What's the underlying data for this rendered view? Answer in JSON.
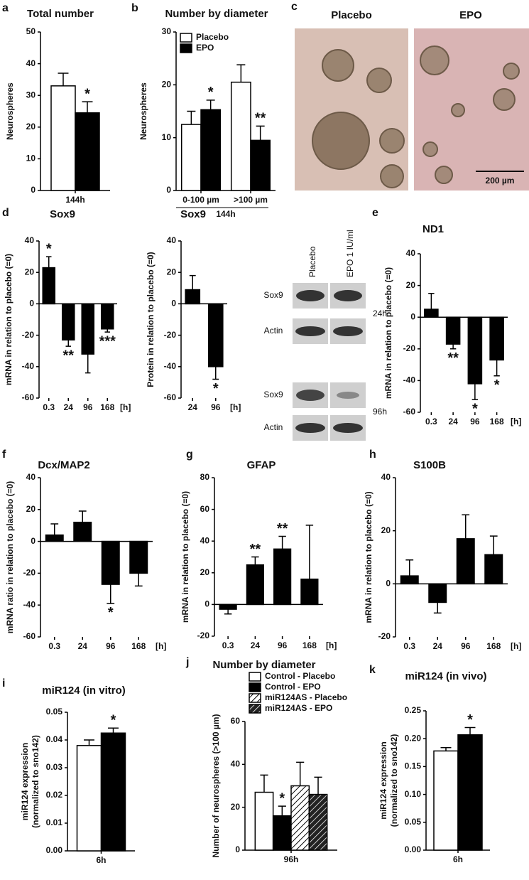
{
  "chart_data": [
    {
      "type": "bar",
      "panel": "a",
      "title": "Total number",
      "ylabel": "Neurospheres",
      "categories": [
        "144h"
      ],
      "ylim": [
        0,
        50
      ],
      "yticks": [
        0,
        10,
        20,
        30,
        40,
        50
      ],
      "series": [
        {
          "color": "#ffffff",
          "values": [
            33
          ],
          "errors": [
            4
          ],
          "stars": [
            null
          ]
        },
        {
          "color": "#000000",
          "values": [
            24.5
          ],
          "errors": [
            3.5
          ],
          "stars": [
            "*"
          ]
        }
      ]
    },
    {
      "type": "bar",
      "panel": "b",
      "title": "Number by diameter",
      "ylabel": "Neurospheres",
      "categories": [
        "0-100 µm",
        ">100 µm"
      ],
      "xlabel": "144h",
      "ylim": [
        0,
        30
      ],
      "yticks": [
        0,
        10,
        20,
        30
      ],
      "legend": "upper left",
      "series": [
        {
          "name": "Placebo",
          "color": "#ffffff",
          "values": [
            12.5,
            20.5
          ],
          "errors": [
            2.5,
            3.3
          ],
          "stars": [
            null,
            null
          ]
        },
        {
          "name": "EPO",
          "color": "#000000",
          "values": [
            15.3,
            9.5
          ],
          "errors": [
            1.8,
            2.7
          ],
          "stars": [
            "*",
            "**"
          ]
        }
      ]
    },
    {
      "type": "bar",
      "panel": "d",
      "title": "Sox9",
      "ylabel": "mRNA in relation to placebo (=0)",
      "categories": [
        "0.3",
        "24",
        "96",
        "168"
      ],
      "unit": "[h]",
      "ylim": [
        -60,
        40
      ],
      "yticks": [
        -60,
        -40,
        -20,
        0,
        20,
        40
      ],
      "series": [
        {
          "color": "#000000",
          "values": [
            23,
            -23,
            -32,
            -16
          ],
          "errors": [
            7,
            4,
            12,
            2
          ],
          "stars": [
            "*",
            "**",
            null,
            "***"
          ]
        }
      ]
    },
    {
      "type": "bar",
      "title": "Sox9",
      "ylabel": "Protein in relation to placebo (=0)",
      "categories": [
        "24",
        "96"
      ],
      "unit": "[h]",
      "ylim": [
        -60,
        40
      ],
      "yticks": [
        -60,
        -40,
        -20,
        0,
        20,
        40
      ],
      "series": [
        {
          "color": "#000000",
          "values": [
            9,
            -40
          ],
          "errors": [
            9,
            8
          ],
          "stars": [
            null,
            "*"
          ]
        }
      ]
    },
    {
      "type": "bar",
      "panel": "e",
      "title": "ND1",
      "ylabel": "mRNA in relation to placebo (=0)",
      "categories": [
        "0.3",
        "24",
        "96",
        "168"
      ],
      "unit": "[h]",
      "ylim": [
        -60,
        40
      ],
      "yticks": [
        -60,
        -40,
        -20,
        0,
        20,
        40
      ],
      "series": [
        {
          "color": "#000000",
          "values": [
            5,
            -17,
            -42,
            -27
          ],
          "errors": [
            10,
            3,
            10,
            10
          ],
          "stars": [
            null,
            "**",
            "*",
            "*"
          ]
        }
      ]
    },
    {
      "type": "bar",
      "panel": "f",
      "title": "Dcx/MAP2",
      "ylabel": "mRNA ratio in relation to placebo (=0)",
      "categories": [
        "0.3",
        "24",
        "96",
        "168"
      ],
      "unit": "[h]",
      "ylim": [
        -60,
        40
      ],
      "yticks": [
        -60,
        -40,
        -20,
        0,
        20,
        40
      ],
      "series": [
        {
          "color": "#000000",
          "values": [
            4,
            12,
            -27,
            -20
          ],
          "errors": [
            7,
            7,
            12,
            8
          ],
          "stars": [
            null,
            null,
            "*",
            null
          ]
        }
      ]
    },
    {
      "type": "bar",
      "panel": "g",
      "title": "GFAP",
      "ylabel": "mRNA in relation to placebo (=0)",
      "categories": [
        "0.3",
        "24",
        "96",
        "168"
      ],
      "unit": "[h]",
      "ylim": [
        -20,
        80
      ],
      "yticks": [
        -20,
        0,
        20,
        40,
        60,
        80
      ],
      "series": [
        {
          "color": "#000000",
          "values": [
            -3,
            25,
            35,
            16
          ],
          "errors": [
            3,
            5,
            8,
            34
          ],
          "stars": [
            null,
            "**",
            "**",
            null
          ]
        }
      ]
    },
    {
      "type": "bar",
      "panel": "h",
      "title": "S100B",
      "ylabel": "mRNA in relation to placebo (=0)",
      "categories": [
        "0.3",
        "24",
        "96",
        "168"
      ],
      "unit": "[h]",
      "ylim": [
        -20,
        40
      ],
      "yticks": [
        -20,
        0,
        20,
        40
      ],
      "series": [
        {
          "color": "#000000",
          "values": [
            3,
            -7,
            17,
            11
          ],
          "errors": [
            6,
            4,
            9,
            7
          ],
          "stars": [
            null,
            null,
            null,
            null
          ]
        }
      ]
    },
    {
      "type": "bar",
      "panel": "i",
      "title": "miR124 (in vitro)",
      "ylabel": [
        "miR124 expression",
        "(normalized to sno142)"
      ],
      "categories": [
        "6h"
      ],
      "ylim": [
        0,
        0.05
      ],
      "yticks": [
        {
          "value": 0,
          "label": "0.00"
        },
        0.01,
        0.02,
        0.03,
        0.04,
        0.05
      ],
      "series": [
        {
          "color": "#ffffff",
          "values": [
            0.038
          ],
          "errors": [
            0.002
          ],
          "stars": [
            null
          ]
        },
        {
          "color": "#000000",
          "values": [
            0.0425
          ],
          "errors": [
            0.0018
          ],
          "stars": [
            "*"
          ]
        }
      ]
    },
    {
      "type": "bar",
      "panel": "j",
      "title": "Number by diameter",
      "ylabel": "Number of neurospheres (>100 µm)",
      "categories": [
        "96h"
      ],
      "ylim": [
        0,
        60
      ],
      "yticks": [
        0,
        20,
        40,
        60
      ],
      "legend": "upper left",
      "series": [
        {
          "name": "Control - Placebo",
          "color": "#ffffff",
          "values": [
            27
          ],
          "errors": [
            8
          ],
          "stars": [
            null
          ]
        },
        {
          "name": "Control - EPO",
          "color": "#000000",
          "values": [
            16
          ],
          "errors": [
            4.5
          ],
          "stars": [
            "*"
          ]
        },
        {
          "name": "miR124AS - Placebo",
          "color": "#ffffff",
          "pattern": "hatch",
          "values": [
            30
          ],
          "errors": [
            11
          ],
          "stars": [
            null
          ]
        },
        {
          "name": "miR124AS - EPO",
          "color": "#222222",
          "pattern": "hatch",
          "values": [
            26
          ],
          "errors": [
            8
          ],
          "stars": [
            null
          ]
        }
      ]
    },
    {
      "type": "bar",
      "panel": "k",
      "title": "miR124 (in vivo)",
      "ylabel": [
        "miR124 expression",
        "(normalized to sno142)"
      ],
      "categories": [
        "6h"
      ],
      "ylim": [
        0,
        0.25
      ],
      "yticks": [
        {
          "value": 0,
          "label": "0.00"
        },
        0.05,
        {
          "value": 0.1,
          "label": "0.10"
        },
        0.15,
        {
          "value": 0.2,
          "label": "0.20"
        },
        0.25
      ],
      "series": [
        {
          "color": "#ffffff",
          "values": [
            0.178
          ],
          "errors": [
            0.006
          ],
          "stars": [
            null
          ]
        },
        {
          "color": "#000000",
          "values": [
            0.207
          ],
          "errors": [
            0.013
          ],
          "stars": [
            "*"
          ]
        }
      ]
    }
  ],
  "photos": {
    "panel": "c",
    "labels": [
      "Placebo",
      "EPO"
    ],
    "scale_bar": "200 µm"
  },
  "blot": {
    "columns": [
      "Placebo",
      "EPO 1 IU/ml"
    ],
    "rows": [
      "Sox9",
      "Actin",
      "Sox9",
      "Actin"
    ],
    "times": [
      "24h",
      "96h"
    ]
  }
}
